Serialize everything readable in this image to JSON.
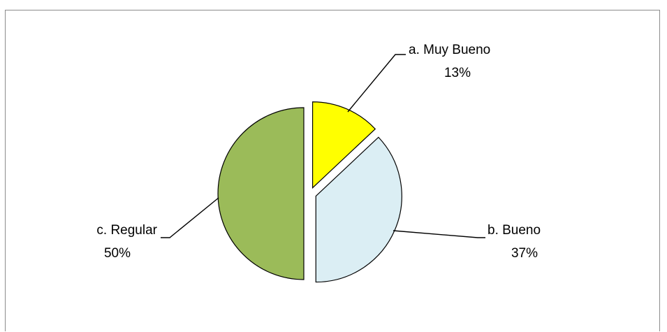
{
  "chart_data": {
    "type": "pie",
    "slices": [
      {
        "label": "a. Muy Bueno",
        "percent_label": "13%",
        "value": 13,
        "color": "#ffff00"
      },
      {
        "label": "b.  Bueno",
        "percent_label": "37%",
        "value": 37,
        "color": "#dbeef4"
      },
      {
        "label": "c. Regular",
        "percent_label": "50%",
        "value": 50,
        "color": "#9bbb59"
      }
    ],
    "exploded": true,
    "legend": "none",
    "data_labels": "outside with leader lines"
  }
}
